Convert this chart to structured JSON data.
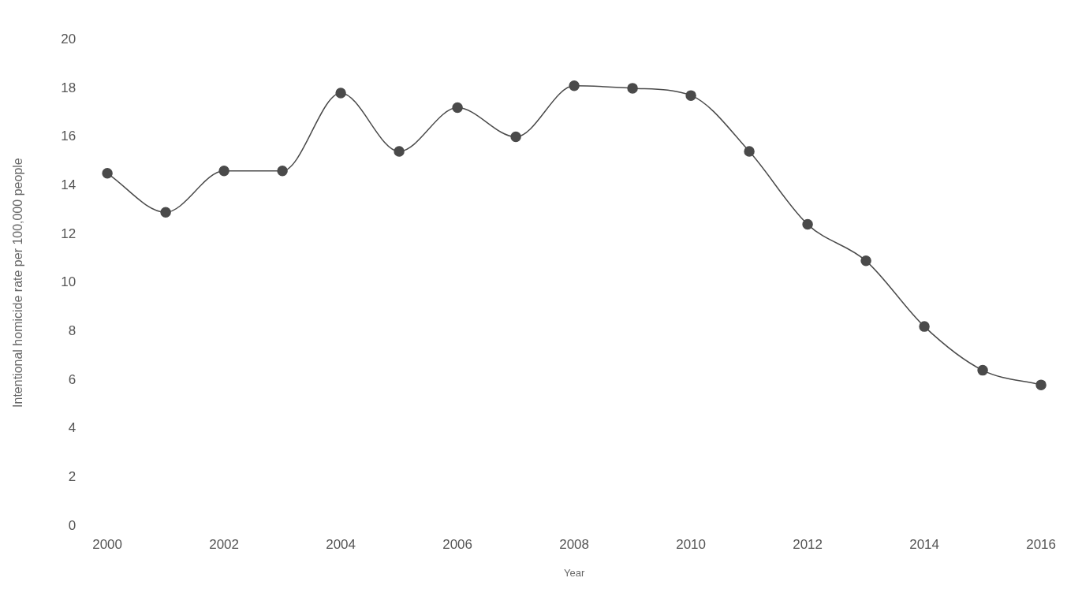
{
  "chart_data": {
    "type": "line",
    "xlabel": "Year",
    "ylabel": "Intentional homicide rate per 100,000 people",
    "x": [
      2000,
      2001,
      2002,
      2003,
      2004,
      2005,
      2006,
      2007,
      2008,
      2009,
      2010,
      2011,
      2012,
      2013,
      2014,
      2015,
      2016
    ],
    "series": [
      {
        "color": "#4a4a4a",
        "values": [
          14.5,
          12.9,
          14.6,
          14.6,
          17.8,
          15.4,
          17.2,
          16.0,
          18.1,
          18.0,
          17.7,
          15.4,
          12.4,
          10.9,
          8.2,
          6.4,
          5.8
        ]
      }
    ],
    "xlim": [
      2000,
      2016
    ],
    "xticks": [
      2000,
      2002,
      2004,
      2006,
      2008,
      2010,
      2012,
      2014,
      2016
    ],
    "ylim": [
      0,
      20
    ],
    "yticks": [
      0,
      2,
      4,
      6,
      8,
      10,
      12,
      14,
      16,
      18,
      20
    ],
    "grid": false,
    "legend": false,
    "marker": "circle",
    "line_style": "solid"
  }
}
